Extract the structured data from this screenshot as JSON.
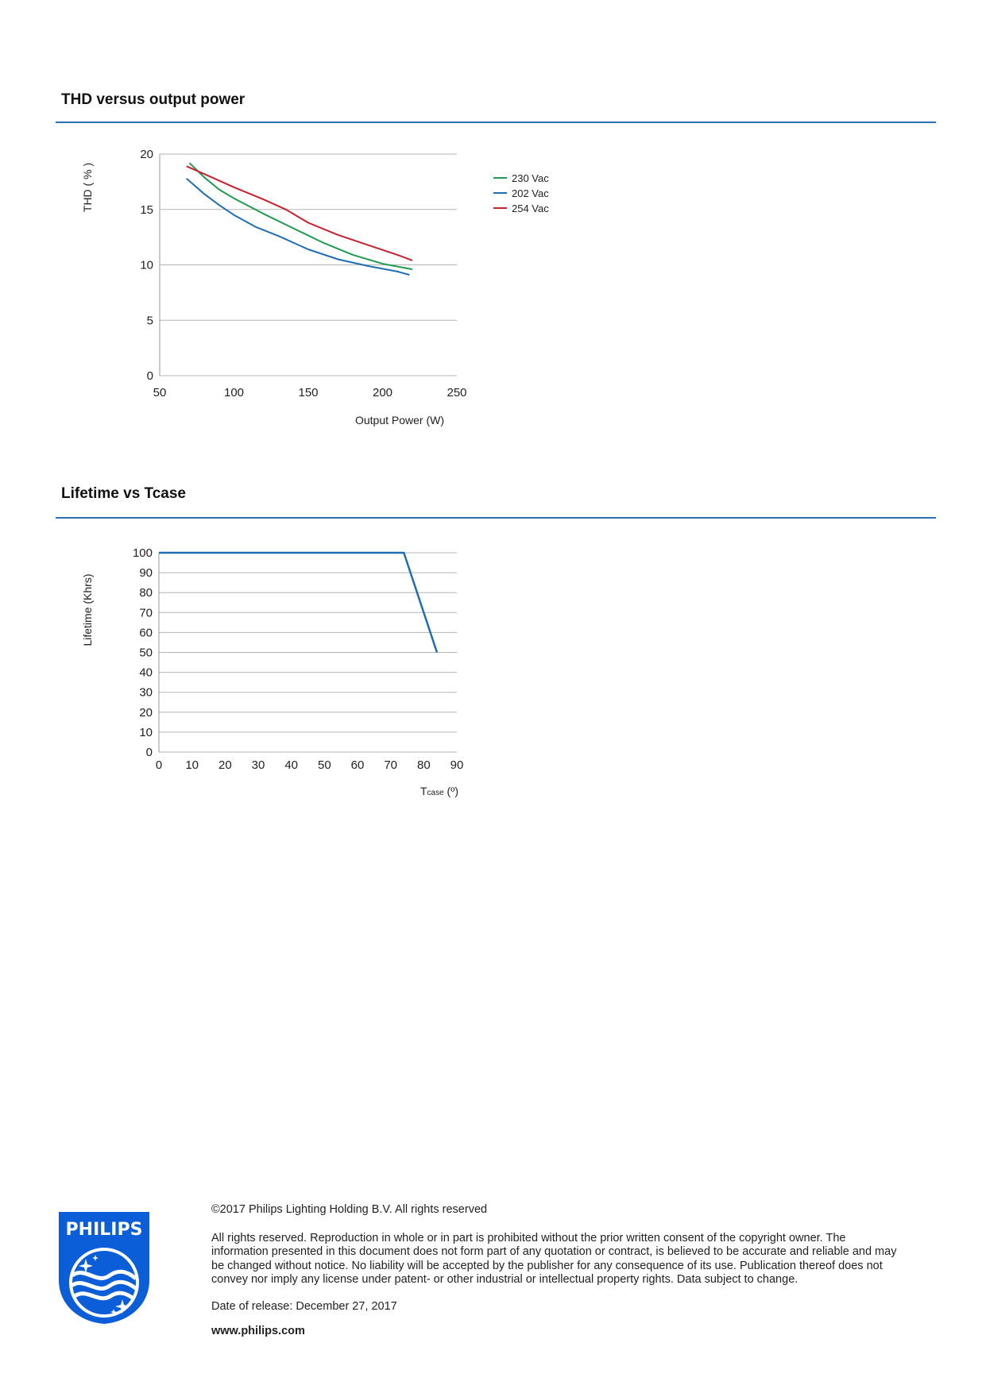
{
  "sections": {
    "thd_title": "THD versus output power",
    "lifetime_title": "Lifetime vs Tcase"
  },
  "chart_data": [
    {
      "type": "line",
      "ylabel": "THD ( % )",
      "xlabel": "Output Power (W)",
      "xlim": [
        50,
        250
      ],
      "ylim": [
        0,
        20
      ],
      "x_ticks": [
        "50",
        "100",
        "150",
        "200",
        "250"
      ],
      "y_ticks": [
        "0",
        "5",
        "10",
        "15",
        "20"
      ],
      "grid": "horizontal",
      "legend": "right",
      "series": [
        {
          "name": "230 Vac",
          "color": "#1f9a52",
          "x": [
            70,
            80,
            90,
            100,
            120,
            140,
            160,
            180,
            200,
            220
          ],
          "y": [
            19.2,
            17.9,
            16.8,
            16.0,
            14.6,
            13.3,
            12.0,
            10.9,
            10.1,
            9.6
          ]
        },
        {
          "name": "202 Vac",
          "color": "#1f6db3",
          "x": [
            68,
            80,
            90,
            100,
            115,
            130,
            150,
            170,
            190,
            210,
            218
          ],
          "y": [
            17.8,
            16.4,
            15.4,
            14.5,
            13.4,
            12.6,
            11.4,
            10.5,
            9.9,
            9.4,
            9.1
          ]
        },
        {
          "name": "254 Vac",
          "color": "#c8202e",
          "x": [
            68,
            80,
            100,
            120,
            135,
            150,
            170,
            190,
            210,
            220
          ],
          "y": [
            18.9,
            18.2,
            17.0,
            15.9,
            15.0,
            13.8,
            12.7,
            11.8,
            10.9,
            10.4
          ]
        }
      ]
    },
    {
      "type": "line",
      "ylabel": "Lifetime (Khrs)",
      "xlabel": "Tcase (º)",
      "xlabel_main": "T",
      "xlabel_sub": "case",
      "xlabel_tail": " (º)",
      "xlim": [
        0,
        90
      ],
      "ylim": [
        0,
        100
      ],
      "x_ticks": [
        "0",
        "10",
        "20",
        "30",
        "40",
        "50",
        "60",
        "70",
        "80",
        "90"
      ],
      "y_ticks": [
        "0",
        "10",
        "20",
        "30",
        "40",
        "50",
        "60",
        "70",
        "80",
        "90",
        "100"
      ],
      "grid": "horizontal",
      "series": [
        {
          "color": "#1f6db3",
          "x": [
            0,
            74,
            84
          ],
          "y": [
            100,
            100,
            50
          ]
        }
      ]
    }
  ],
  "footer": {
    "copyright": "©2017 Philips Lighting Holding B.V. All rights reserved",
    "legal": "All rights reserved. Reproduction in whole or in part is prohibited without the prior written consent of the copyright owner. The information presented in this document does not form part of any quotation or contract, is believed to be accurate and reliable and may be changed without notice. No liability will be accepted by the publisher for any consequence of its use. Publication thereof does not convey nor imply any license under patent- or other industrial or intellectual property rights. Data subject to change.",
    "release": "Date of release: December 27, 2017",
    "website": "www.philips.com",
    "logo_text": "PHILIPS",
    "brand_color": "#0b5ed7"
  }
}
